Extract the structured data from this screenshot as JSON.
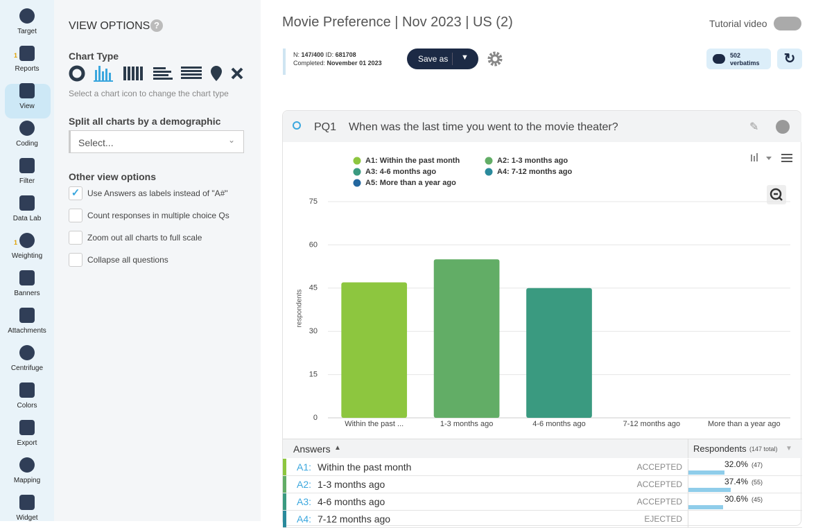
{
  "sidebar": {
    "items": [
      {
        "label": "Target"
      },
      {
        "label": "Reports",
        "badge": 1
      },
      {
        "label": "View",
        "active": true
      },
      {
        "label": "Coding"
      },
      {
        "label": "Filter"
      },
      {
        "label": "Data Lab"
      },
      {
        "label": "Weighting",
        "badge": 1
      },
      {
        "label": "Banners"
      },
      {
        "label": "Attachments"
      },
      {
        "label": "Centrifuge"
      },
      {
        "label": "Colors"
      },
      {
        "label": "Export"
      },
      {
        "label": "Mapping"
      },
      {
        "label": "Widget"
      }
    ]
  },
  "view_options": {
    "title": "VIEW OPTIONS",
    "chart_type_label": "Chart Type",
    "chart_type_hint": "Select a chart icon to change the chart type",
    "split_label": "Split all charts by a demographic",
    "select_placeholder": "Select...",
    "other_label": "Other view options",
    "options": [
      {
        "label": "Use Answers as labels instead of \"A#\"",
        "checked": true
      },
      {
        "label": "Count responses in multiple choice Qs",
        "checked": false
      },
      {
        "label": "Zoom out all charts to full scale",
        "checked": false
      },
      {
        "label": "Collapse all questions",
        "checked": false
      }
    ]
  },
  "header": {
    "title": "Movie Preference | Nov 2023 | US (2)",
    "tutorial": "Tutorial video",
    "n_label": "N:",
    "n_value": "147/400",
    "id_label": "ID:",
    "id_value": "681708",
    "completed_label": "Completed:",
    "completed_value": "November 01 2023",
    "save_as": "Save as",
    "verbatims_count": 502,
    "verbatims_label": "verbatims"
  },
  "question": {
    "id": "PQ1",
    "text": "When was the last time you went to the movie theater?"
  },
  "chart_data": {
    "type": "bar",
    "y_label": "respondents",
    "categories": [
      "Within the past ...",
      "1-3 months ago",
      "4-6 months ago",
      "7-12 months ago",
      "More than a year ago"
    ],
    "values": [
      47,
      55,
      45,
      0,
      0
    ],
    "colors": [
      "#8dc63f",
      "#62ad66",
      "#3a9a80",
      "#2a8a9c",
      "#23679f"
    ],
    "legend": [
      "A1: Within the past month",
      "A2: 1-3 months ago",
      "A3: 4-6 months ago",
      "A4: 7-12 months ago",
      "A5: More than a year ago"
    ],
    "ylim": [
      0,
      75
    ],
    "yticks": [
      0,
      15,
      30,
      45,
      60,
      75
    ],
    "grid": true
  },
  "table": {
    "headers": {
      "answers": "Answers",
      "respondents": "Respondents",
      "total": "(147 total)"
    },
    "rows": [
      {
        "code": "A1:",
        "label": "Within the past month",
        "status": "ACCEPTED",
        "percent": 32.0,
        "percent_label": "32.0%",
        "count_label": "(47)"
      },
      {
        "code": "A2:",
        "label": "1-3 months ago",
        "status": "ACCEPTED",
        "percent": 37.4,
        "percent_label": "37.4%",
        "count_label": "(55)"
      },
      {
        "code": "A3:",
        "label": "4-6 months ago",
        "status": "ACCEPTED",
        "percent": 30.6,
        "percent_label": "30.6%",
        "count_label": "(45)"
      },
      {
        "code": "A4:",
        "label": "7-12 months ago",
        "status": "EJECTED"
      }
    ]
  }
}
